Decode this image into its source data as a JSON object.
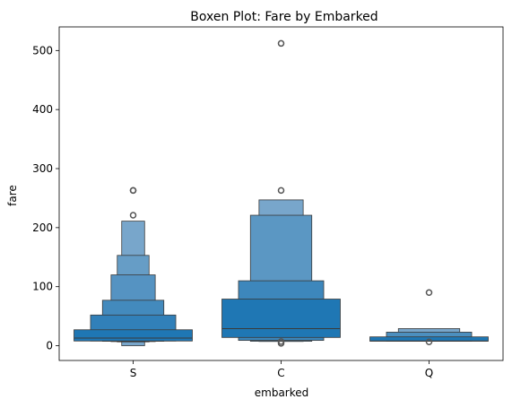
{
  "chart_data": {
    "type": "boxen",
    "title": "Boxen Plot: Fare by Embarked",
    "xlabel": "embarked",
    "ylabel": "fare",
    "ylim": [
      -25,
      540
    ],
    "yticks": [
      0,
      100,
      200,
      300,
      400,
      500
    ],
    "categories": [
      "S",
      "C",
      "Q"
    ],
    "groups": [
      {
        "category": "S",
        "median": 13,
        "levels": [
          {
            "lo": 8,
            "hi": 27
          },
          {
            "lo": 8,
            "hi": 52
          },
          {
            "lo": 7.5,
            "hi": 77
          },
          {
            "lo": 7,
            "hi": 120
          },
          {
            "lo": 6.5,
            "hi": 153
          },
          {
            "lo": 0,
            "hi": 211
          }
        ],
        "outliers": [
          221,
          263,
          263
        ]
      },
      {
        "category": "C",
        "median": 29,
        "levels": [
          {
            "lo": 14,
            "hi": 79
          },
          {
            "lo": 9,
            "hi": 110
          },
          {
            "lo": 7.5,
            "hi": 221
          },
          {
            "lo": 7.2,
            "hi": 247
          }
        ],
        "outliers": [
          4,
          7,
          263,
          512
        ]
      },
      {
        "category": "Q",
        "median": 8,
        "levels": [
          {
            "lo": 7.7,
            "hi": 15
          },
          {
            "lo": 7.6,
            "hi": 23
          },
          {
            "lo": 7.5,
            "hi": 29
          }
        ],
        "outliers": [
          6.5,
          90
        ]
      }
    ],
    "colors": {
      "box": "#1f77b4",
      "edge": "#3a3a3a",
      "outlier": "#555555"
    },
    "grid": false
  }
}
